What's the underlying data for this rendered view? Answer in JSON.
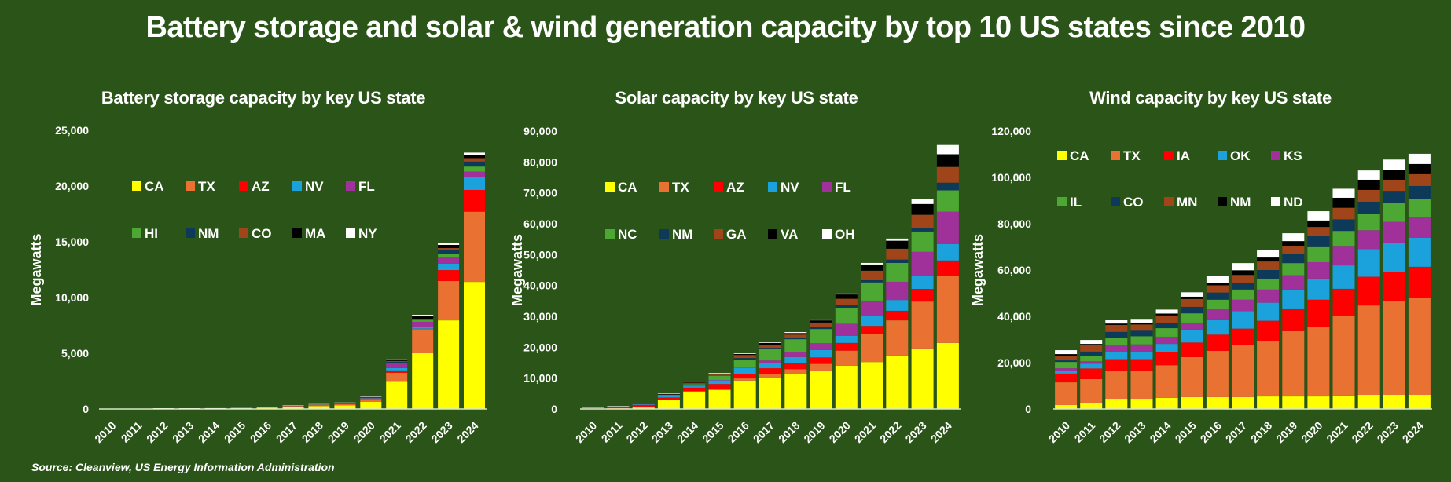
{
  "title": "Battery storage and solar & wind generation capacity by top 10 US states since 2010",
  "source": "Source: Cleanview, US Energy Information Administration",
  "colors": {
    "background": "#2A5418",
    "text": "#FFFFFF",
    "axis": "#D9E8C8"
  },
  "chart_data": [
    {
      "id": "battery",
      "type": "bar",
      "stacked": true,
      "title": "Battery storage capacity by key US state",
      "xlabel": "",
      "ylabel": "Megawatts",
      "ylim": [
        0,
        25000
      ],
      "yticks": [
        0,
        5000,
        10000,
        15000,
        20000,
        25000
      ],
      "ytick_labels": [
        "0",
        "5,000",
        "10,000",
        "15,000",
        "20,000",
        "25,000"
      ],
      "grid": false,
      "legend_position": "top-left",
      "categories": [
        "2010",
        "2011",
        "2012",
        "2013",
        "2014",
        "2015",
        "2016",
        "2017",
        "2018",
        "2019",
        "2020",
        "2021",
        "2022",
        "2023",
        "2024"
      ],
      "series": [
        {
          "name": "CA",
          "color": "#FFFF00",
          "values": [
            10,
            15,
            40,
            40,
            40,
            50,
            130,
            200,
            260,
            330,
            650,
            2500,
            5000,
            7950,
            11400
          ]
        },
        {
          "name": "TX",
          "color": "#E97132",
          "values": [
            5,
            5,
            20,
            20,
            25,
            25,
            40,
            70,
            100,
            110,
            250,
            750,
            2180,
            3530,
            6300
          ]
        },
        {
          "name": "AZ",
          "color": "#FF0000",
          "values": [
            0,
            0,
            0,
            0,
            0,
            0,
            5,
            10,
            10,
            15,
            30,
            210,
            20,
            980,
            1950
          ]
        },
        {
          "name": "NV",
          "color": "#1BA1DC",
          "values": [
            0,
            0,
            0,
            0,
            0,
            0,
            0,
            5,
            5,
            10,
            20,
            210,
            190,
            570,
            1150
          ]
        },
        {
          "name": "FL",
          "color": "#A0309A",
          "values": [
            0,
            0,
            0,
            0,
            0,
            0,
            0,
            5,
            5,
            10,
            20,
            420,
            430,
            560,
            500
          ]
        },
        {
          "name": "HI",
          "color": "#4CA832",
          "values": [
            0,
            0,
            5,
            5,
            5,
            5,
            10,
            20,
            20,
            30,
            40,
            70,
            140,
            350,
            450
          ]
        },
        {
          "name": "NM",
          "color": "#0E3A5A",
          "values": [
            0,
            0,
            0,
            0,
            0,
            0,
            0,
            0,
            0,
            5,
            10,
            70,
            70,
            290,
            450
          ]
        },
        {
          "name": "CO",
          "color": "#A0441A",
          "values": [
            0,
            0,
            0,
            0,
            0,
            0,
            0,
            5,
            5,
            10,
            20,
            80,
            70,
            210,
            300
          ]
        },
        {
          "name": "MA",
          "color": "#000000",
          "values": [
            0,
            0,
            0,
            0,
            0,
            0,
            5,
            10,
            10,
            30,
            40,
            70,
            210,
            280,
            250
          ]
        },
        {
          "name": "NY",
          "color": "#FFFFFF",
          "values": [
            0,
            0,
            5,
            5,
            5,
            5,
            10,
            20,
            25,
            30,
            40,
            70,
            140,
            210,
            250
          ]
        }
      ]
    },
    {
      "id": "solar",
      "type": "bar",
      "stacked": true,
      "title": "Solar capacity by key US state",
      "xlabel": "",
      "ylabel": "Megawatts",
      "ylim": [
        0,
        90000
      ],
      "yticks": [
        0,
        10000,
        20000,
        30000,
        40000,
        50000,
        60000,
        70000,
        80000,
        90000
      ],
      "ytick_labels": [
        "0",
        "10,000",
        "20,000",
        "30,000",
        "40,000",
        "50,000",
        "60,000",
        "70,000",
        "80,000",
        "90,000"
      ],
      "grid": false,
      "legend_position": "top-left",
      "categories": [
        "2010",
        "2011",
        "2012",
        "2013",
        "2014",
        "2015",
        "2016",
        "2017",
        "2018",
        "2019",
        "2020",
        "2021",
        "2022",
        "2023",
        "2024"
      ],
      "series": [
        {
          "name": "CA",
          "color": "#FFFF00",
          "values": [
            100,
            200,
            500,
            2800,
            5600,
            6100,
            9200,
            10000,
            11200,
            12200,
            14000,
            15200,
            17300,
            19600,
            21400
          ]
        },
        {
          "name": "TX",
          "color": "#E97132",
          "values": [
            20,
            50,
            100,
            150,
            200,
            400,
            700,
            1200,
            1700,
            2400,
            4900,
            9000,
            11400,
            15200,
            21600
          ]
        },
        {
          "name": "AZ",
          "color": "#FF0000",
          "values": [
            100,
            300,
            700,
            750,
            1100,
            1600,
            1500,
            2000,
            2100,
            2100,
            2500,
            2700,
            3100,
            4100,
            5100
          ]
        },
        {
          "name": "NV",
          "color": "#1BA1DC",
          "values": [
            50,
            80,
            200,
            400,
            500,
            1200,
            2000,
            1800,
            1800,
            2400,
            2300,
            3200,
            3500,
            4100,
            5300
          ]
        },
        {
          "name": "FL",
          "color": "#A0309A",
          "values": [
            30,
            150,
            100,
            150,
            100,
            100,
            300,
            700,
            1500,
            2200,
            3900,
            5000,
            5900,
            7900,
            10500
          ]
        },
        {
          "name": "NC",
          "color": "#4CA832",
          "values": [
            20,
            50,
            150,
            350,
            600,
            1400,
            2300,
            3800,
            4300,
            4600,
            5200,
            5900,
            6100,
            6600,
            6900
          ]
        },
        {
          "name": "NM",
          "color": "#0E3A5A",
          "values": [
            10,
            20,
            50,
            100,
            100,
            200,
            500,
            300,
            500,
            800,
            800,
            700,
            1100,
            1000,
            2500
          ]
        },
        {
          "name": "GA",
          "color": "#A0441A",
          "values": [
            10,
            20,
            50,
            100,
            300,
            200,
            1000,
            1000,
            1000,
            1300,
            2100,
            3100,
            3500,
            4400,
            5100
          ]
        },
        {
          "name": "VA",
          "color": "#000000",
          "values": [
            5,
            10,
            20,
            50,
            200,
            300,
            300,
            600,
            500,
            700,
            1400,
            2000,
            2600,
            3500,
            4100
          ]
        },
        {
          "name": "OH",
          "color": "#FFFFFF",
          "values": [
            30,
            50,
            100,
            150,
            200,
            200,
            200,
            200,
            300,
            300,
            300,
            500,
            700,
            1700,
            3000
          ]
        }
      ]
    },
    {
      "id": "wind",
      "type": "bar",
      "stacked": true,
      "title": "Wind capacity by key US state",
      "xlabel": "",
      "ylabel": "Megawatts",
      "ylim": [
        0,
        120000
      ],
      "yticks": [
        0,
        20000,
        40000,
        60000,
        80000,
        100000,
        120000
      ],
      "ytick_labels": [
        "0",
        "20,000",
        "40,000",
        "60,000",
        "80,000",
        "100,000",
        "120,000"
      ],
      "grid": false,
      "legend_position": "top-left",
      "categories": [
        "2010",
        "2011",
        "2012",
        "2013",
        "2014",
        "2015",
        "2016",
        "2017",
        "2018",
        "2019",
        "2020",
        "2021",
        "2022",
        "2023",
        "2024"
      ],
      "series": [
        {
          "name": "CA",
          "color": "#FFFF00",
          "values": [
            1700,
            2400,
            4400,
            4400,
            4800,
            5100,
            5100,
            5100,
            5400,
            5400,
            5400,
            5800,
            6100,
            6100,
            6100
          ]
        },
        {
          "name": "TX",
          "color": "#E97132",
          "values": [
            9800,
            10500,
            12100,
            12100,
            14100,
            17300,
            20000,
            22400,
            24100,
            28200,
            30200,
            34200,
            38600,
            40400,
            42000
          ]
        },
        {
          "name": "IA",
          "color": "#FF0000",
          "values": [
            3800,
            4600,
            5000,
            5000,
            5800,
            6300,
            7000,
            7200,
            8600,
            9800,
            11600,
            11900,
            12400,
            12800,
            13300
          ]
        },
        {
          "name": "OK",
          "color": "#1BA1DC",
          "values": [
            1300,
            2000,
            3200,
            3200,
            3400,
            5200,
            6600,
            7500,
            7800,
            8200,
            9100,
            10100,
            11900,
            12300,
            12500
          ]
        },
        {
          "name": "KS",
          "color": "#A0309A",
          "values": [
            1000,
            1100,
            2700,
            3200,
            3100,
            3400,
            4400,
            5000,
            5700,
            6200,
            7100,
            8100,
            8200,
            9200,
            9100
          ]
        },
        {
          "name": "IL",
          "color": "#4CA832",
          "values": [
            2700,
            2400,
            3400,
            3500,
            3700,
            4000,
            4100,
            4400,
            4700,
            5200,
            6500,
            6800,
            7100,
            8100,
            7800
          ]
        },
        {
          "name": "CO",
          "color": "#0E3A5A",
          "values": [
            700,
            1800,
            2500,
            2400,
            2300,
            2800,
            3100,
            2900,
            3700,
            3800,
            5000,
            5000,
            5200,
            5300,
            5500
          ]
        },
        {
          "name": "MN",
          "color": "#A0441A",
          "values": [
            2050,
            2900,
            3000,
            2700,
            3200,
            3400,
            3100,
            3400,
            3700,
            3700,
            3700,
            5000,
            5100,
            4800,
            5100
          ]
        },
        {
          "name": "NM",
          "color": "#000000",
          "values": [
            650,
            400,
            600,
            800,
            800,
            1000,
            1100,
            2000,
            1700,
            2000,
            2800,
            4300,
            4400,
            4300,
            4400
          ]
        },
        {
          "name": "ND",
          "color": "#FFFFFF",
          "values": [
            1700,
            1700,
            1700,
            1600,
            1700,
            1900,
            3100,
            3100,
            3400,
            3400,
            4000,
            3900,
            4000,
            4400,
            4400
          ]
        }
      ]
    }
  ]
}
